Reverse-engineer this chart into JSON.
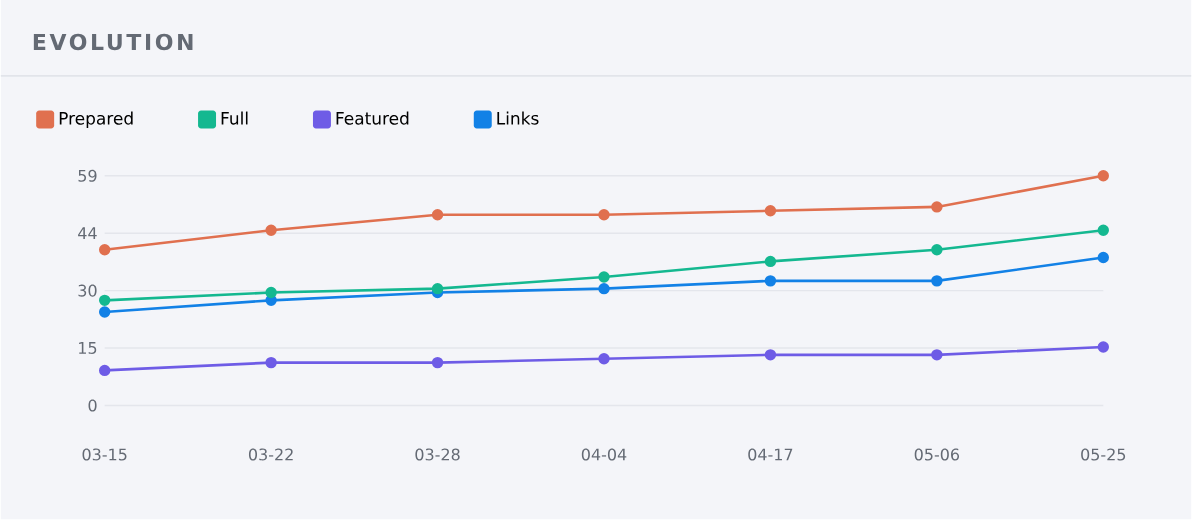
{
  "chart_data": {
    "type": "line",
    "title": "EVOLUTION",
    "categories": [
      "03-15",
      "03-22",
      "03-28",
      "04-04",
      "04-17",
      "05-06",
      "05-25"
    ],
    "series": [
      {
        "name": "Prepared",
        "color": "#e0704f",
        "values": [
          40,
          45,
          49,
          49,
          50,
          51,
          59
        ]
      },
      {
        "name": "Full",
        "color": "#14b890",
        "values": [
          27,
          29,
          30,
          33,
          37,
          40,
          45
        ]
      },
      {
        "name": "Featured",
        "color": "#6e5ce6",
        "values": [
          9,
          11,
          11,
          12,
          13,
          13,
          15
        ]
      },
      {
        "name": "Links",
        "color": "#1281e6",
        "values": [
          24,
          27,
          29,
          30,
          32,
          32,
          38
        ]
      }
    ],
    "ylim": [
      0,
      59
    ],
    "yticks": [
      0,
      {
        "value": 14.75,
        "label": "15"
      },
      {
        "value": 29.5,
        "label": "30"
      },
      {
        "value": 44.25,
        "label": "44"
      },
      59
    ],
    "grid": "y",
    "legend": "top left",
    "marker": "circle",
    "line_style": "solid"
  }
}
